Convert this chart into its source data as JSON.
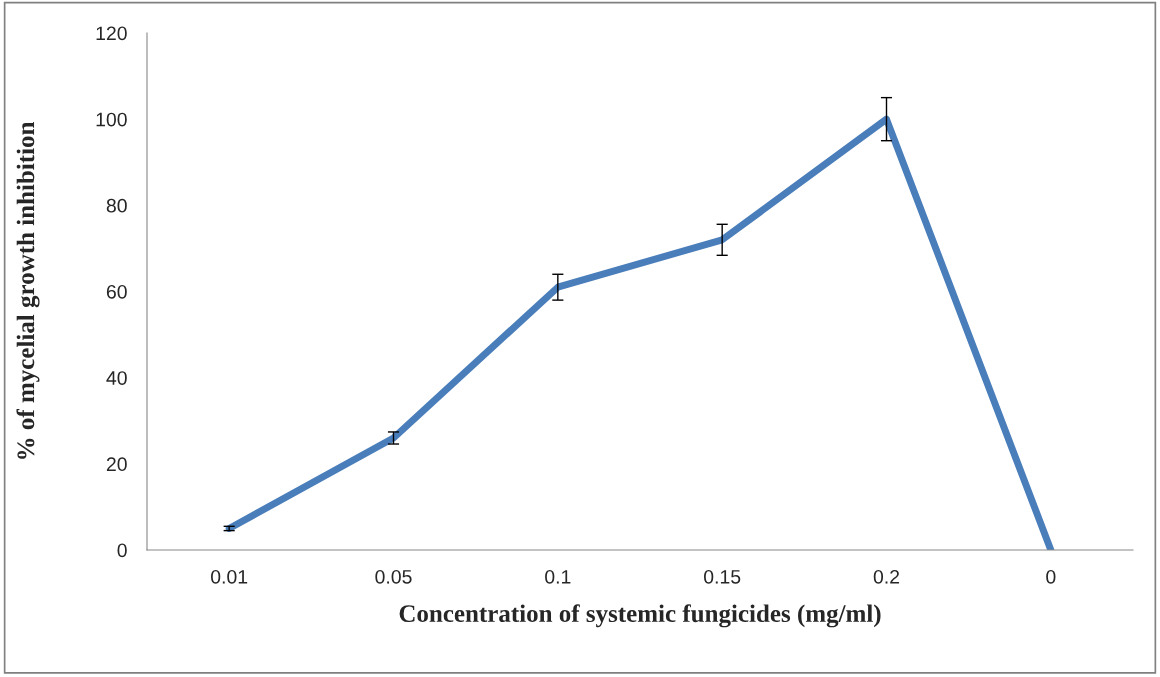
{
  "chart_data": {
    "type": "line",
    "xlabel": "Concentration of systemic fungicides (mg/ml)",
    "ylabel": "% of mycelial growth inhibition",
    "categories": [
      "0.01",
      "0.05",
      "0.1",
      "0.15",
      "0.2",
      "0"
    ],
    "series": [
      {
        "color": "#4a7ebb",
        "values": [
          5,
          26,
          61,
          72,
          100,
          0
        ],
        "errors": [
          0.5,
          1.4,
          3,
          3.6,
          5,
          null
        ]
      }
    ],
    "ylim": [
      0,
      120
    ],
    "yticks": [
      0,
      20,
      40,
      60,
      80,
      100,
      120
    ],
    "grid": false,
    "legend": false,
    "marker": "none",
    "line_style": "solid"
  }
}
